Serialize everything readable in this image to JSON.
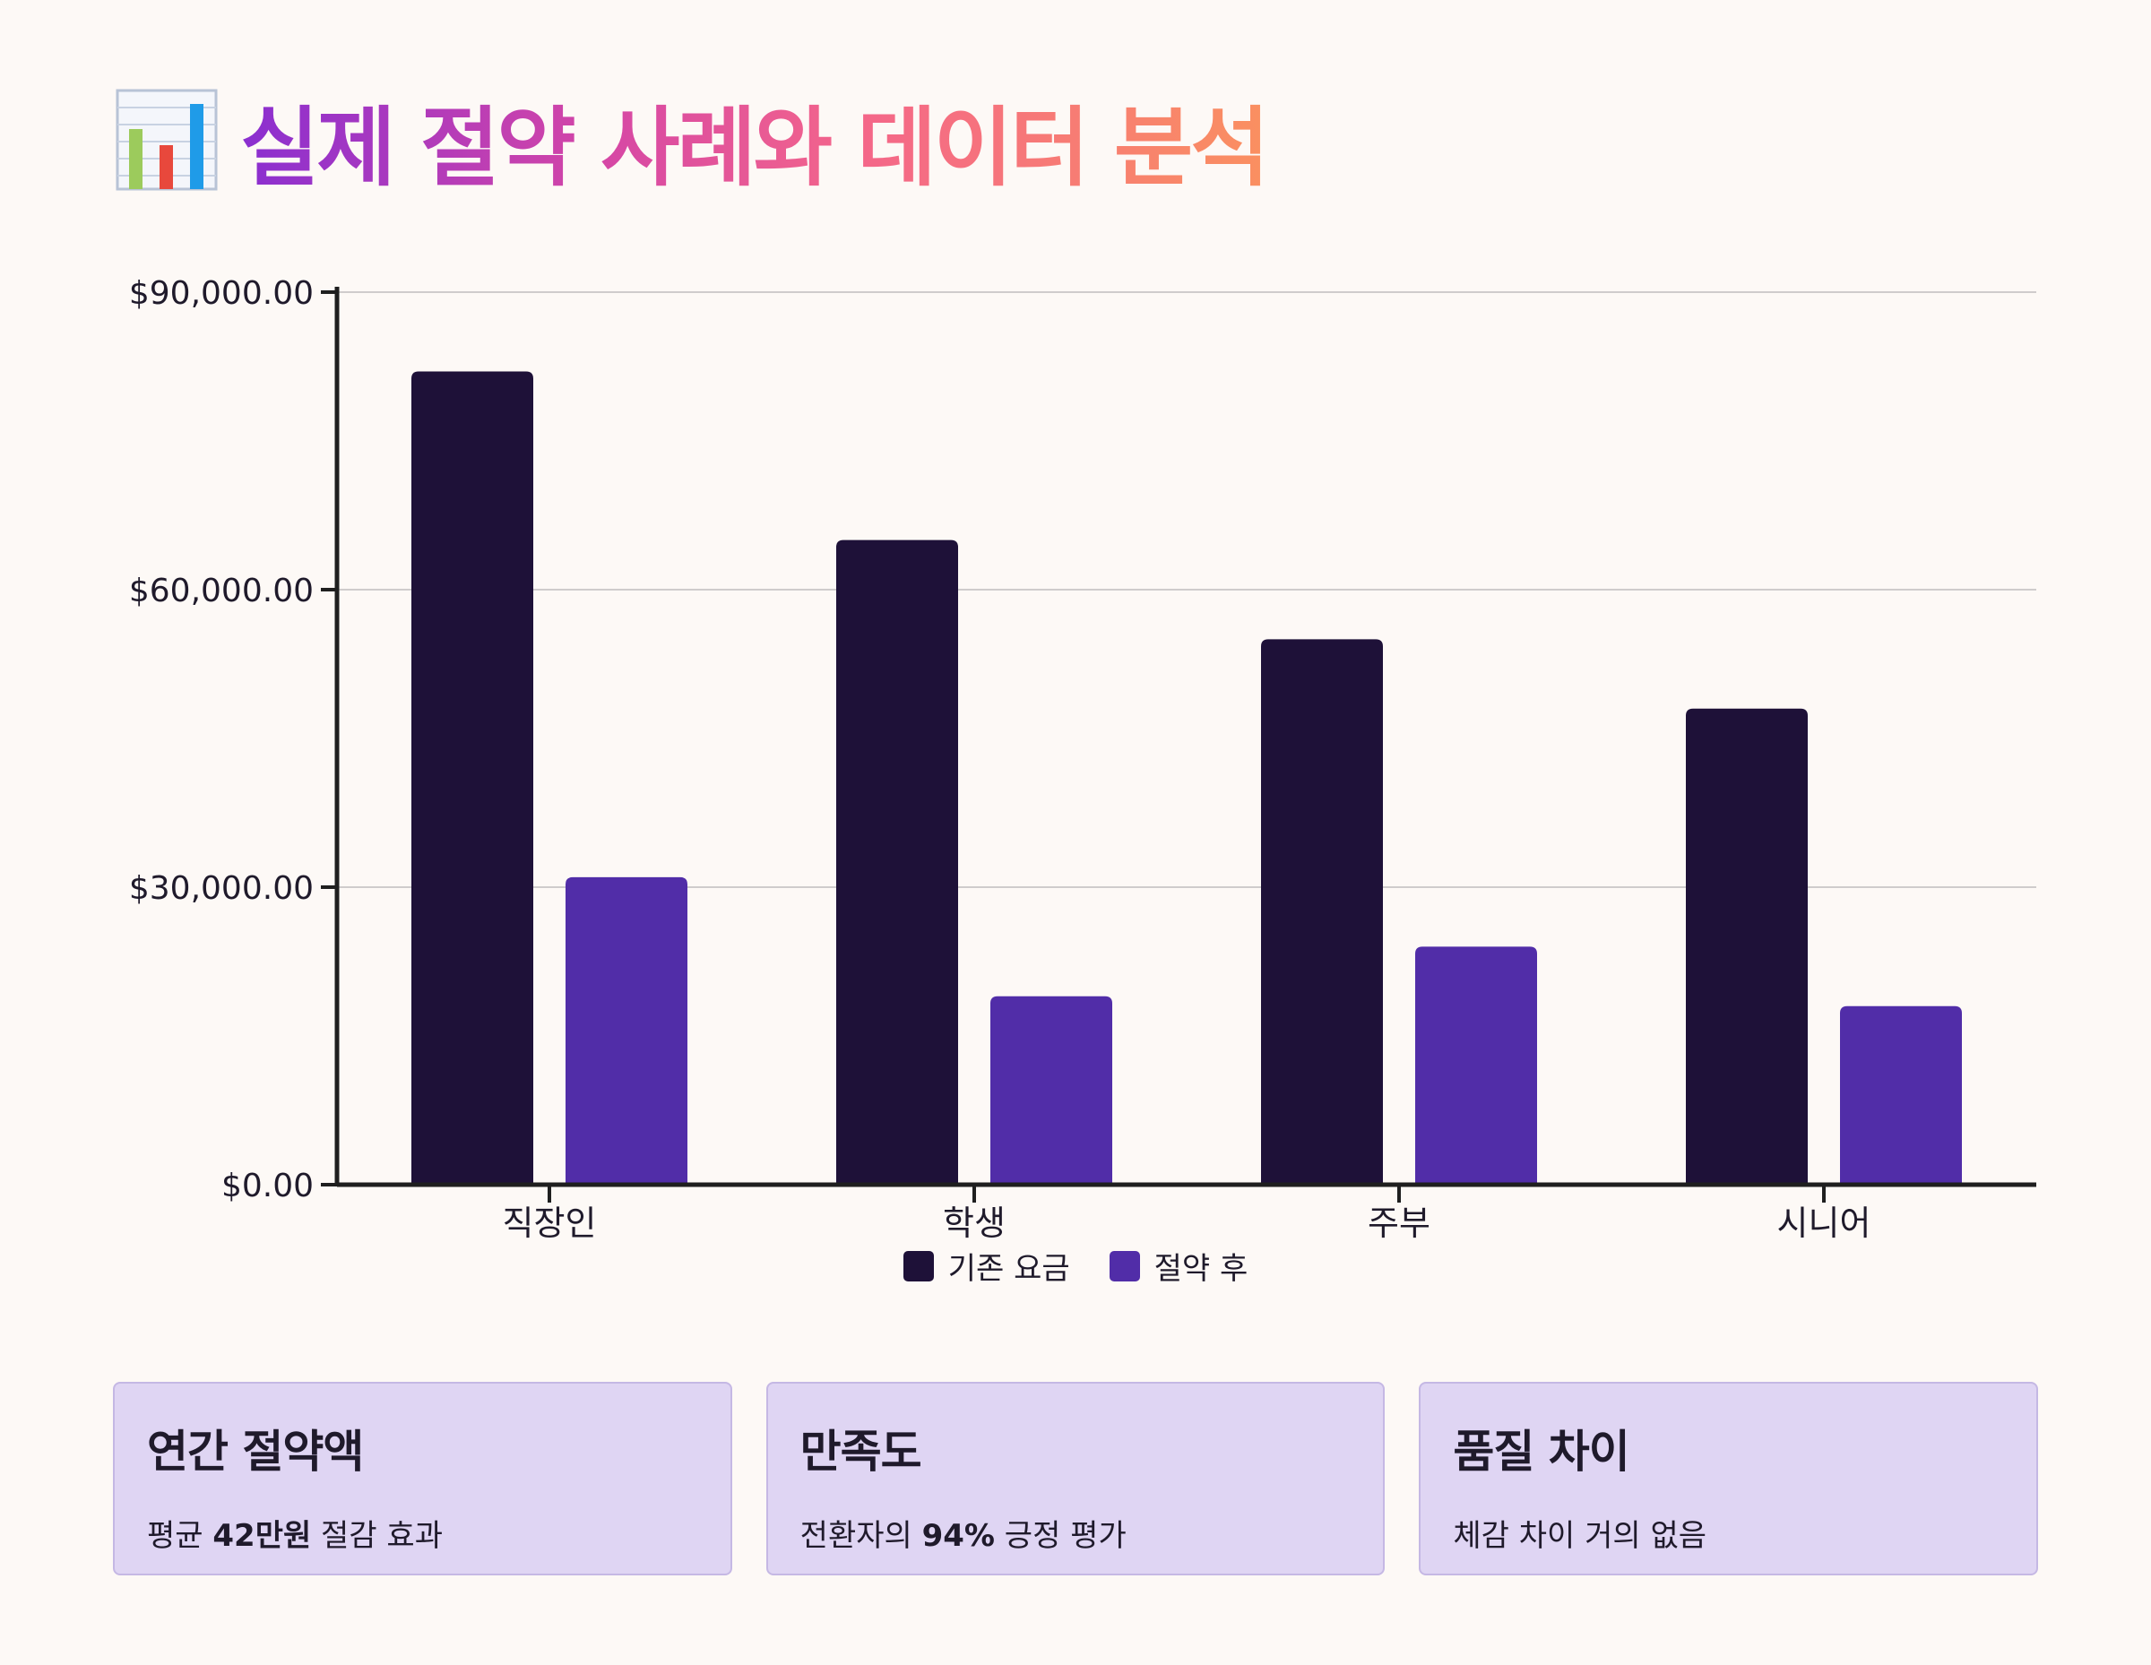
{
  "header": {
    "icon": "bar-chart-emoji-icon",
    "title": "실제 절약 사례와 데이터 분석"
  },
  "chart_data": {
    "type": "bar",
    "categories": [
      "직장인",
      "학생",
      "주부",
      "시니어"
    ],
    "series": [
      {
        "name": "기존 요금",
        "color": "#1e1138",
        "values": [
          82000,
          65000,
          55000,
          48000
        ]
      },
      {
        "name": "절약 후",
        "color": "#512da8",
        "values": [
          31000,
          19000,
          24000,
          18000
        ]
      }
    ],
    "ylim": [
      0,
      90000
    ],
    "yticks": [
      0,
      30000,
      60000,
      90000
    ],
    "ytick_labels": [
      "$0.00",
      "$30,000.00",
      "$60,000.00",
      "$90,000.00"
    ],
    "grid": true,
    "legend": "bottom-center",
    "title": "",
    "xlabel": "",
    "ylabel": ""
  },
  "cards": [
    {
      "title": "연간 절약액",
      "prefix": "평균 ",
      "highlight": "42만원",
      "suffix": " 절감 효과"
    },
    {
      "title": "만족도",
      "prefix": "전환자의 ",
      "highlight": "94%",
      "suffix": " 긍정 평가"
    },
    {
      "title": "품질 차이",
      "prefix": "체감 차이 거의 없음",
      "highlight": "",
      "suffix": ""
    }
  ]
}
